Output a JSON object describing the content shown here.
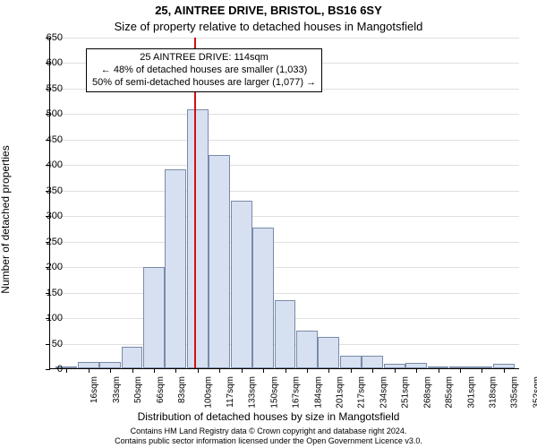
{
  "chart": {
    "type": "histogram",
    "title": "25, AINTREE DRIVE, BRISTOL, BS16 6SY",
    "subtitle": "Size of property relative to detached houses in Mangotsfield",
    "ylabel": "Number of detached properties",
    "xlabel": "Distribution of detached houses by size in Mangotsfield",
    "title_fontsize": 13,
    "subtitle_fontsize": 13,
    "label_fontsize": 12,
    "tick_fontsize": 11,
    "xtick_fontsize": 10,
    "background_color": "#ffffff",
    "grid_color": "#e0e0e0",
    "axis_color": "#000000",
    "bar_fill": "#d6e0f0",
    "bar_border": "#7a8aa8",
    "marker_color": "#d01010",
    "ylim": [
      0,
      650
    ],
    "ytick_step": 50,
    "x_categories": [
      "16sqm",
      "33sqm",
      "50sqm",
      "66sqm",
      "83sqm",
      "100sqm",
      "117sqm",
      "133sqm",
      "150sqm",
      "167sqm",
      "184sqm",
      "201sqm",
      "217sqm",
      "234sqm",
      "251sqm",
      "268sqm",
      "285sqm",
      "301sqm",
      "318sqm",
      "335sqm",
      "352sqm"
    ],
    "values": [
      3,
      12,
      12,
      42,
      198,
      390,
      508,
      418,
      328,
      275,
      133,
      73,
      62,
      25,
      25,
      8,
      10,
      4,
      4,
      2,
      8
    ],
    "marker_value": 114,
    "annotation": {
      "line1": "25 AINTREE DRIVE: 114sqm",
      "line2": "← 48% of detached houses are smaller (1,033)",
      "line3": "50% of semi-detached houses are larger (1,077) →"
    },
    "footer_line1": "Contains HM Land Registry data © Crown copyright and database right 2024.",
    "footer_line2": "Contains public sector information licensed under the Open Government Licence v3.0."
  }
}
